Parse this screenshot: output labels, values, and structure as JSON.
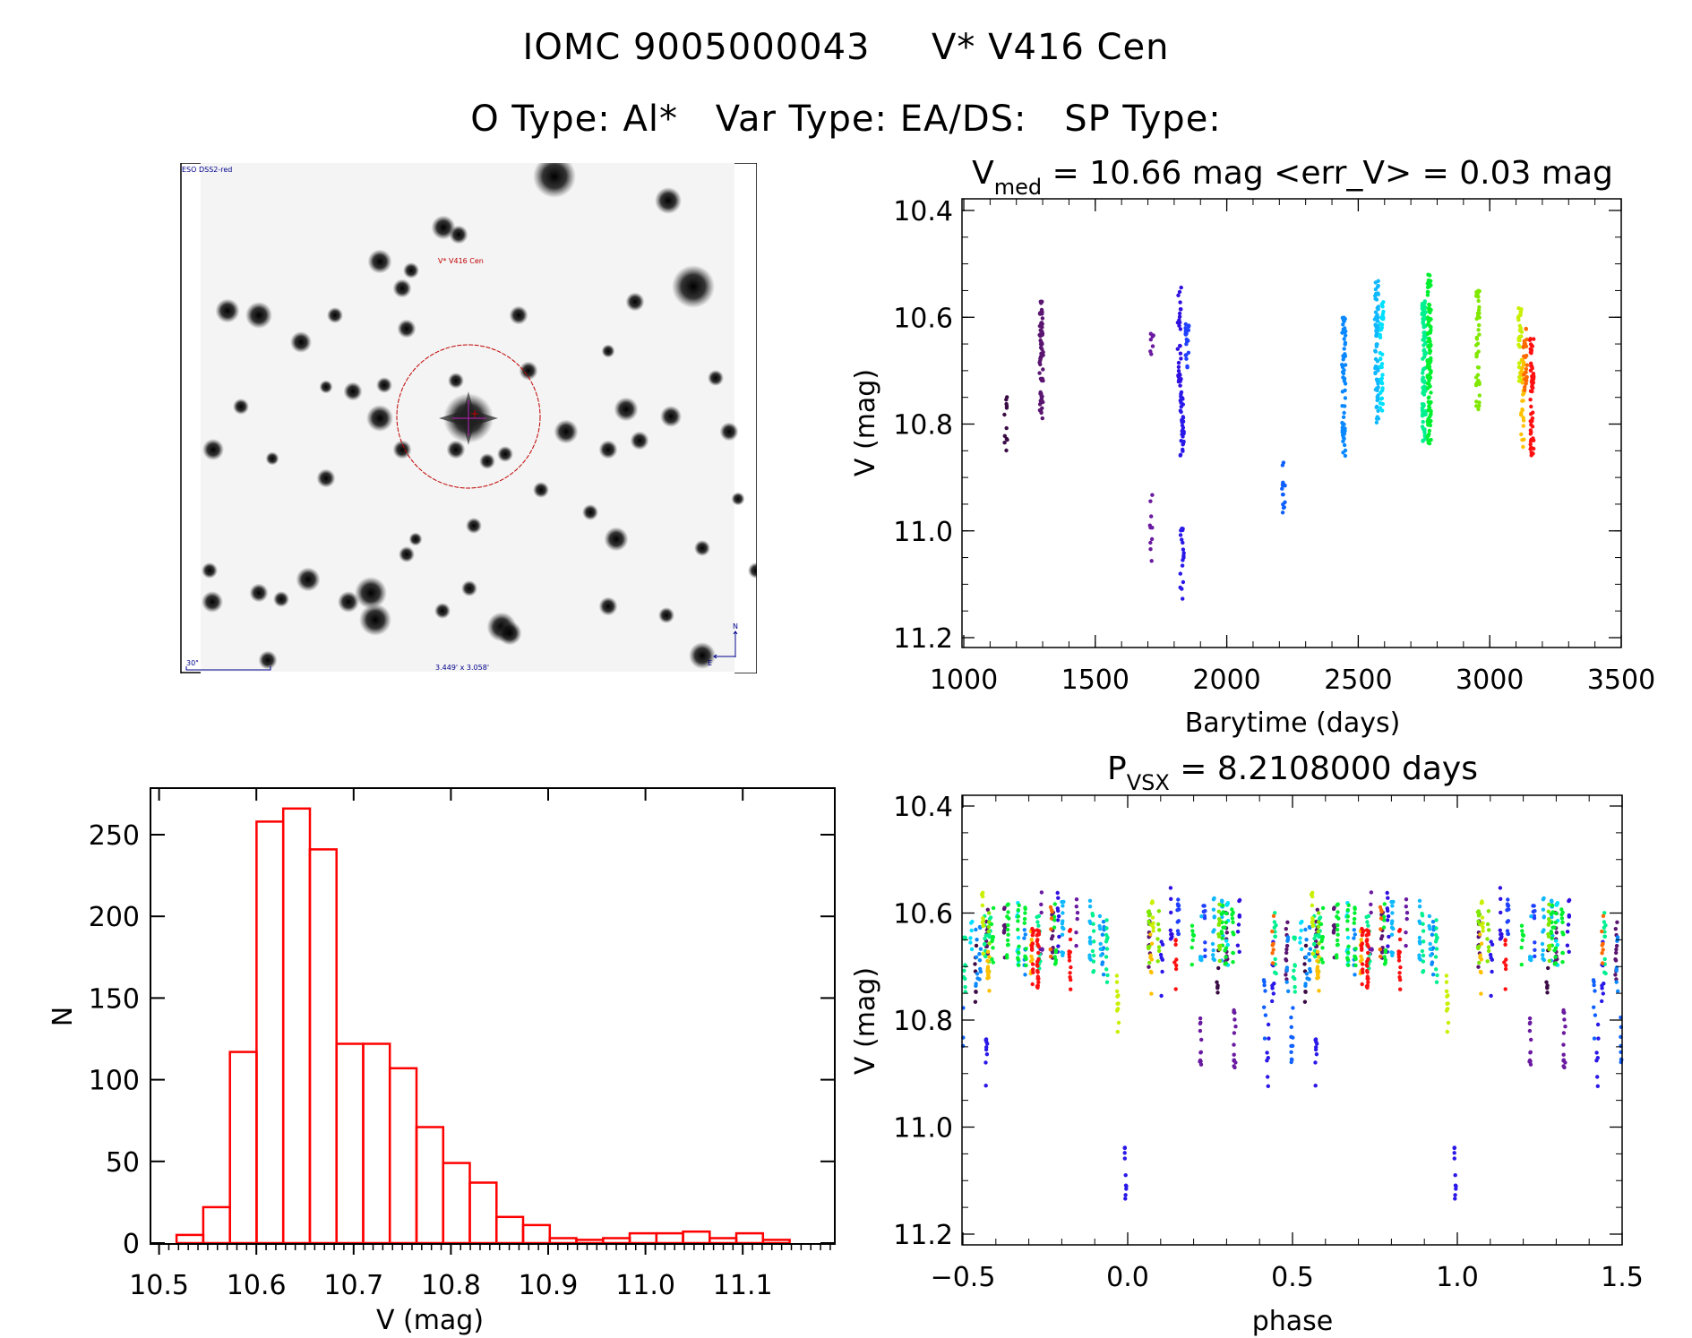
{
  "header": {
    "catalog_id": "IOMC 9005000043",
    "star_name": "V* V416 Cen",
    "o_type_label": "O Type:",
    "o_type": "Al*",
    "var_type_label": "Var Type:",
    "var_type": "EA/DS:",
    "sp_type_label": "SP Type:",
    "sp_type": ""
  },
  "sky_image": {
    "survey_label": "ESO DSS2-red",
    "target_label": "V* V416 Cen",
    "scale_bar_label": "30\"",
    "field_size_label": "3.449' x 3.058'",
    "north_label": "N",
    "east_label": "E",
    "frame_color": "#000000",
    "label_color": "#00008b",
    "target_color": "#c00000",
    "crosshair_color": "#a020a0"
  },
  "chart_data": [
    {
      "id": "light-curve",
      "type": "scatter",
      "title_main": "V",
      "title_sub": "med",
      "title_rest": " = 10.66 mag <err_V> = 0.03 mag",
      "median_v": 10.66,
      "mean_err_v": 0.03,
      "xlabel": "Barytime (days)",
      "ylabel": "V (mag)",
      "xlim": [
        1000,
        3500
      ],
      "ylim": [
        10.4,
        11.2
      ],
      "y_inverted": true,
      "xticks": [
        1000,
        1500,
        2000,
        2500,
        3000,
        3500
      ],
      "xtick_labels": [
        "1000",
        "1500",
        "2000",
        "2500",
        "3000",
        "3500"
      ],
      "yticks": [
        10.4,
        10.6,
        10.8,
        11.0,
        11.2
      ],
      "ytick_labels": [
        "10.4",
        "10.6",
        "10.8",
        "11.0",
        "11.2"
      ],
      "seasons": [
        {
          "t": 1160,
          "mag_min": 10.73,
          "mag_max": 10.85,
          "n": 12,
          "color": "#3a0a45"
        },
        {
          "t": 1295,
          "mag_min": 10.57,
          "mag_max": 10.79,
          "n": 70,
          "color": "#5a1570"
        },
        {
          "t": 1715,
          "mag_min": 10.62,
          "mag_max": 10.67,
          "n": 7,
          "color": "#6a1aa0"
        },
        {
          "t": 1713,
          "mag_min": 10.93,
          "mag_max": 11.06,
          "n": 10,
          "color": "#6a1aa0"
        },
        {
          "t": 1820,
          "mag_min": 10.54,
          "mag_max": 10.73,
          "n": 30,
          "color": "#3010e0"
        },
        {
          "t": 1830,
          "mag_min": 10.74,
          "mag_max": 10.86,
          "n": 35,
          "color": "#2a18e8"
        },
        {
          "t": 1830,
          "mag_min": 10.99,
          "mag_max": 11.13,
          "n": 18,
          "color": "#2a18e8"
        },
        {
          "t": 1850,
          "mag_min": 10.61,
          "mag_max": 10.7,
          "n": 20,
          "color": "#2040ff"
        },
        {
          "t": 2215,
          "mag_min": 10.87,
          "mag_max": 10.97,
          "n": 16,
          "color": "#1060ff"
        },
        {
          "t": 2445,
          "mag_min": 10.6,
          "mag_max": 10.86,
          "n": 60,
          "color": "#0a88ff"
        },
        {
          "t": 2570,
          "mag_min": 10.53,
          "mag_max": 10.8,
          "n": 70,
          "color": "#10b8ff"
        },
        {
          "t": 2590,
          "mag_min": 10.57,
          "mag_max": 10.79,
          "n": 40,
          "color": "#00e0ff"
        },
        {
          "t": 2750,
          "mag_min": 10.57,
          "mag_max": 10.84,
          "n": 90,
          "color": "#00f090"
        },
        {
          "t": 2770,
          "mag_min": 10.52,
          "mag_max": 10.85,
          "n": 110,
          "color": "#00f030"
        },
        {
          "t": 2955,
          "mag_min": 10.55,
          "mag_max": 10.78,
          "n": 45,
          "color": "#80e800"
        },
        {
          "t": 3115,
          "mag_min": 10.58,
          "mag_max": 10.72,
          "n": 30,
          "color": "#c8f000"
        },
        {
          "t": 3125,
          "mag_min": 10.68,
          "mag_max": 10.85,
          "n": 30,
          "color": "#ffc000"
        },
        {
          "t": 3135,
          "mag_min": 10.62,
          "mag_max": 10.75,
          "n": 25,
          "color": "#ff6a00"
        },
        {
          "t": 3160,
          "mag_min": 10.64,
          "mag_max": 10.88,
          "n": 60,
          "color": "#ff1010"
        }
      ]
    },
    {
      "id": "magnitude-histogram",
      "type": "bar",
      "xlabel": "V (mag)",
      "ylabel": "N",
      "xlim": [
        10.49,
        11.2
      ],
      "ylim": [
        0,
        278
      ],
      "xticks": [
        10.5,
        10.6,
        10.7,
        10.8,
        10.9,
        11.0,
        11.1
      ],
      "xtick_labels": [
        "10.5",
        "10.6",
        "10.7",
        "10.8",
        "10.9",
        "11.0",
        "11.1"
      ],
      "yticks": [
        0,
        50,
        100,
        150,
        200,
        250
      ],
      "ytick_labels": [
        "0",
        "50",
        "100",
        "150",
        "200",
        "250"
      ],
      "bin_start": 10.518,
      "bin_width": 0.0274,
      "values": [
        5,
        22,
        117,
        258,
        266,
        241,
        122,
        122,
        107,
        71,
        49,
        37,
        16,
        11,
        3,
        2,
        3,
        6,
        6,
        7,
        3,
        6,
        2
      ],
      "bar_color": "#ff0000"
    },
    {
      "id": "phased-light-curve",
      "type": "scatter",
      "title_main": "P",
      "title_sub": "VSX",
      "title_rest": " = 8.2108000 days",
      "period_days": 8.2108,
      "xlabel": "phase",
      "ylabel": "V (mag)",
      "xlim": [
        -0.5,
        1.5
      ],
      "ylim": [
        10.4,
        11.2
      ],
      "y_inverted": true,
      "xticks": [
        -0.5,
        0.0,
        0.5,
        1.0,
        1.5
      ],
      "xtick_labels": [
        "−0.5",
        "0.0",
        "0.5",
        "1.0",
        "1.5"
      ],
      "yticks": [
        10.4,
        10.6,
        10.8,
        11.0,
        11.2
      ],
      "ytick_labels": [
        "10.4",
        "10.6",
        "10.8",
        "11.0",
        "11.2"
      ],
      "primary_eclipse_phase": 0.0,
      "primary_eclipse_depth_mag": 11.13,
      "out_of_eclipse_mag": 10.64
    }
  ]
}
